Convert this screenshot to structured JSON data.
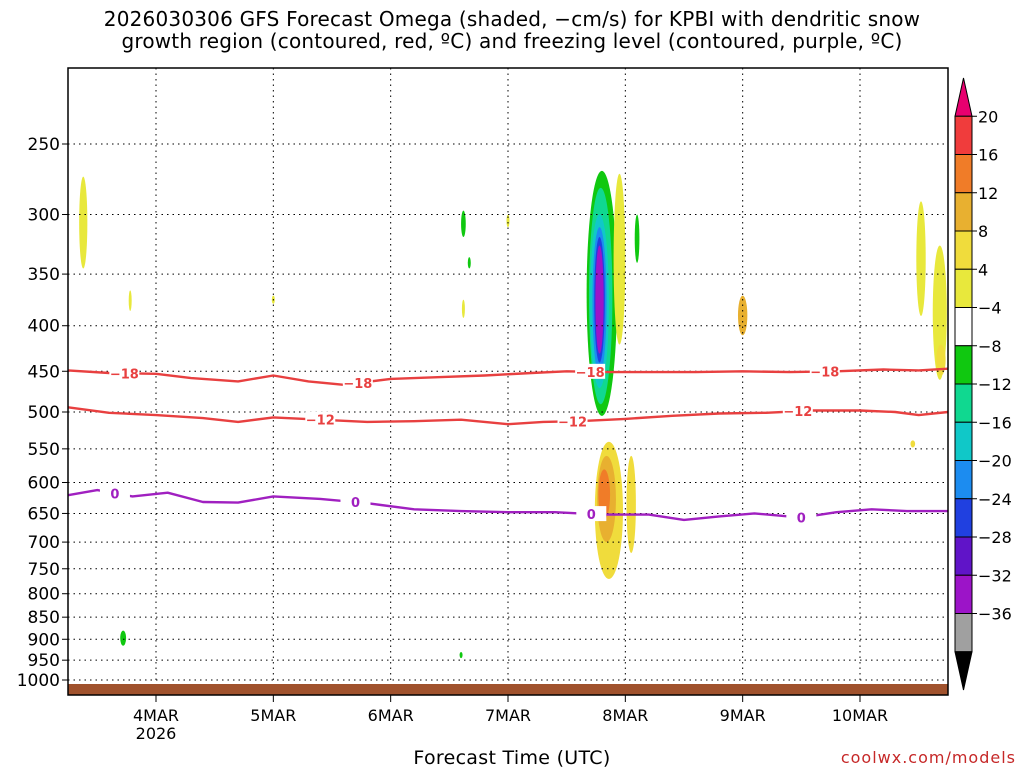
{
  "title": {
    "line1": "2026030306 GFS Forecast Omega (shaded, −cm/s) for KPBI with dendritic snow",
    "line2": "growth region (contoured, red, ºC) and freezing level (contoured, purple, ºC)"
  },
  "credit": "coolwx.com/models",
  "chart_data": {
    "type": "heatmap",
    "title": "2026030306 GFS Forecast Omega (shaded, −cm/s) for KPBI with dendritic snow growth region (contoured, red, ºC) and freezing level (contoured, purple, ºC)",
    "xlabel": "Forecast Time (UTC)",
    "ylabel": "",
    "x_ticks": [
      {
        "label": "4MAR",
        "sublabel": "2026",
        "day": 4
      },
      {
        "label": "5MAR",
        "sublabel": "",
        "day": 5
      },
      {
        "label": "6MAR",
        "sublabel": "",
        "day": 6
      },
      {
        "label": "7MAR",
        "sublabel": "",
        "day": 7
      },
      {
        "label": "8MAR",
        "sublabel": "",
        "day": 8
      },
      {
        "label": "9MAR",
        "sublabel": "",
        "day": 9
      },
      {
        "label": "10MAR",
        "sublabel": "",
        "day": 10
      }
    ],
    "xlim_days": [
      3.25,
      10.75
    ],
    "y_ticks": [
      250,
      300,
      350,
      400,
      450,
      500,
      550,
      600,
      650,
      700,
      750,
      800,
      850,
      900,
      950,
      1000
    ],
    "ylim_hpa": [
      200,
      1020
    ],
    "grid": true,
    "colorbar": {
      "levels": [
        "20",
        "16",
        "12",
        "8",
        "4",
        "−4",
        "−8",
        "−12",
        "−16",
        "−20",
        "−24",
        "−28",
        "−32",
        "−36"
      ],
      "colors": [
        "#e8006f",
        "#f03c3c",
        "#f07c28",
        "#e8b030",
        "#f0dc3c",
        "#e8e83c",
        "#ffffff",
        "#10c810",
        "#10d890",
        "#10c8c8",
        "#1c8cf0",
        "#2040e0",
        "#6014c8",
        "#9c14c8",
        "#a0a0a0",
        "#000000"
      ]
    },
    "contours": [
      {
        "name": "dendritic-top",
        "label": "−18",
        "color": "#e84040",
        "points": [
          [
            3.25,
            449
          ],
          [
            3.6,
            452
          ],
          [
            4.0,
            453
          ],
          [
            4.3,
            458
          ],
          [
            4.7,
            462
          ],
          [
            5.0,
            455
          ],
          [
            5.3,
            462
          ],
          [
            5.6,
            466
          ],
          [
            6.0,
            459
          ],
          [
            6.4,
            457
          ],
          [
            6.8,
            455
          ],
          [
            7.2,
            452
          ],
          [
            7.5,
            450
          ],
          [
            7.8,
            451
          ],
          [
            8.2,
            451
          ],
          [
            8.6,
            451
          ],
          [
            9.0,
            450
          ],
          [
            9.4,
            451
          ],
          [
            9.8,
            450
          ],
          [
            10.2,
            448
          ],
          [
            10.5,
            449
          ],
          [
            10.75,
            447
          ]
        ],
        "labels_at": [
          3.73,
          5.72,
          7.7,
          9.7
        ]
      },
      {
        "name": "dendritic-bottom",
        "label": "−12",
        "color": "#e84040",
        "points": [
          [
            3.25,
            494
          ],
          [
            3.6,
            501
          ],
          [
            4.0,
            504
          ],
          [
            4.4,
            508
          ],
          [
            4.7,
            513
          ],
          [
            5.0,
            507
          ],
          [
            5.4,
            510
          ],
          [
            5.8,
            513
          ],
          [
            6.2,
            512
          ],
          [
            6.6,
            510
          ],
          [
            7.0,
            516
          ],
          [
            7.3,
            513
          ],
          [
            7.6,
            512
          ],
          [
            8.0,
            509
          ],
          [
            8.4,
            505
          ],
          [
            8.8,
            502
          ],
          [
            9.2,
            501
          ],
          [
            9.6,
            498
          ],
          [
            10.0,
            498
          ],
          [
            10.3,
            500
          ],
          [
            10.5,
            504
          ],
          [
            10.75,
            500
          ]
        ],
        "labels_at": [
          5.4,
          7.55,
          9.47
        ]
      },
      {
        "name": "freezing-level",
        "label": "0",
        "color": "#a020c0",
        "points": [
          [
            3.25,
            620
          ],
          [
            3.5,
            612
          ],
          [
            3.8,
            622
          ],
          [
            4.1,
            616
          ],
          [
            4.4,
            631
          ],
          [
            4.7,
            632
          ],
          [
            5.0,
            622
          ],
          [
            5.4,
            626
          ],
          [
            5.8,
            633
          ],
          [
            6.2,
            643
          ],
          [
            6.6,
            646
          ],
          [
            7.0,
            648
          ],
          [
            7.4,
            648
          ],
          [
            7.8,
            652
          ],
          [
            8.2,
            652
          ],
          [
            8.5,
            661
          ],
          [
            8.8,
            655
          ],
          [
            9.1,
            650
          ],
          [
            9.5,
            657
          ],
          [
            9.8,
            648
          ],
          [
            10.1,
            643
          ],
          [
            10.4,
            646
          ],
          [
            10.75,
            646
          ]
        ],
        "labels_at": [
          3.65,
          5.7,
          7.71,
          9.5
        ]
      }
    ],
    "shaded_features": [
      {
        "name": "omega-core-upward",
        "value_range": "−32 to −4",
        "day_range": [
          7.68,
          7.92
        ],
        "hpa_range": [
          270,
          505
        ]
      },
      {
        "name": "omega-lower-positive",
        "value_range": "4 to 16",
        "day_range": [
          7.7,
          7.95
        ],
        "hpa_range": [
          540,
          770
        ]
      },
      {
        "name": "omega-east-edge-positive",
        "value_range": "4 to 12",
        "day_range": [
          10.4,
          10.75
        ],
        "hpa_range": [
          290,
          460
        ]
      }
    ],
    "surface": {
      "label": "terrain",
      "hpa": 1013,
      "color": "#a0522d"
    }
  }
}
